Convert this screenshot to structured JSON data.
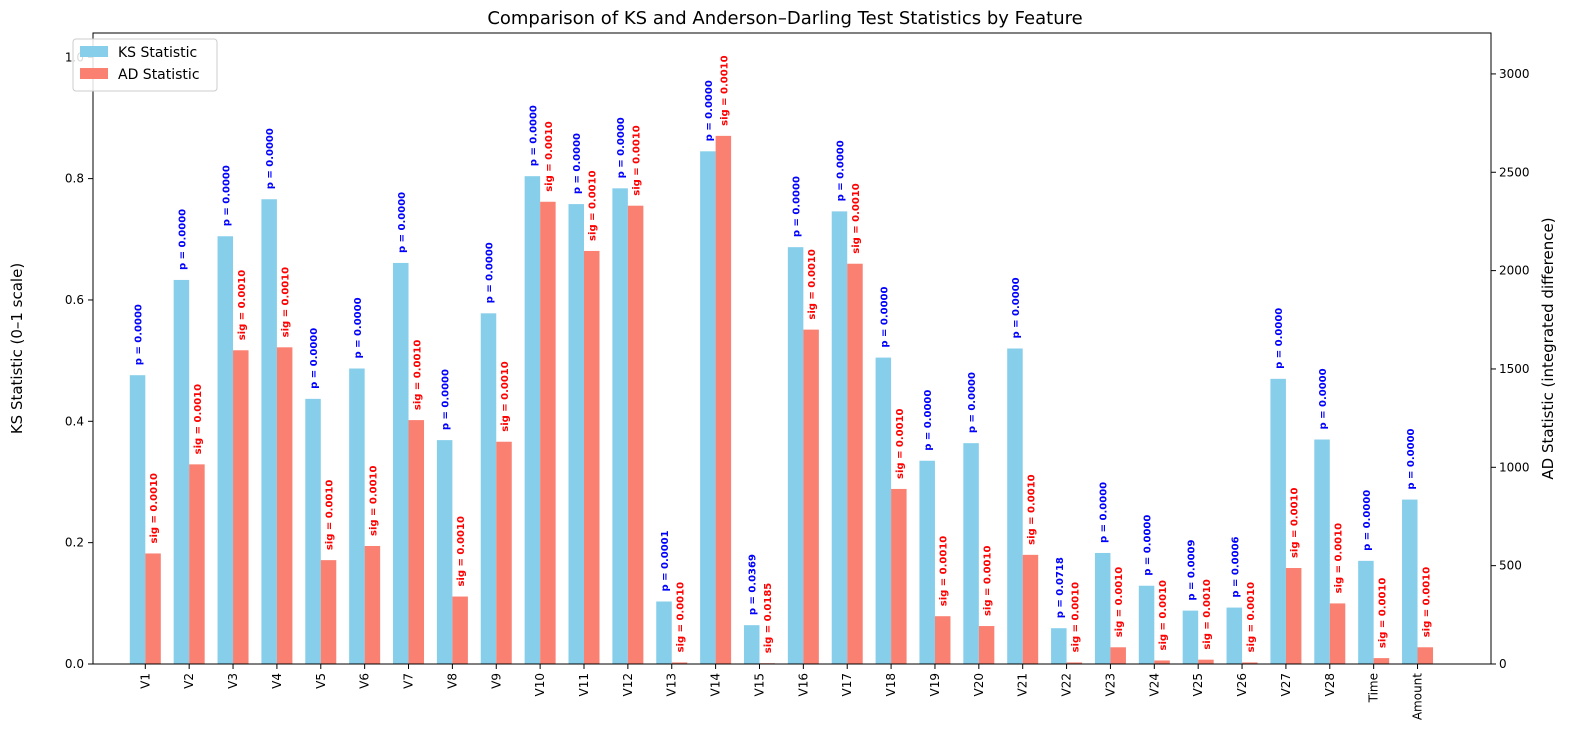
{
  "chart_data": {
    "type": "bar",
    "title": "Comparison of KS and Anderson–Darling Test Statistics by Feature",
    "ylabel_left": "KS Statistic (0–1 scale)",
    "ylabel_right": "AD Statistic (integrated difference)",
    "ylim_left": [
      0,
      1.04
    ],
    "ylim_right": [
      0,
      3208
    ],
    "yticks_left": [
      "0.0",
      "0.2",
      "0.4",
      "0.6",
      "0.8",
      "1.0"
    ],
    "yticks_right": [
      "0",
      "500",
      "1000",
      "1500",
      "2000",
      "2500",
      "3000"
    ],
    "legend_position": "top-left",
    "categories": [
      "V1",
      "V2",
      "V3",
      "V4",
      "V5",
      "V6",
      "V7",
      "V8",
      "V9",
      "V10",
      "V11",
      "V12",
      "V13",
      "V14",
      "V15",
      "V16",
      "V17",
      "V18",
      "V19",
      "V20",
      "V21",
      "V22",
      "V23",
      "V24",
      "V25",
      "V26",
      "V27",
      "V28",
      "Time",
      "Amount"
    ],
    "series": [
      {
        "name": "KS Statistic",
        "axis": "left",
        "color": "#87ceeb",
        "annotation_color": "#0000ff",
        "values": [
          0.476,
          0.633,
          0.705,
          0.766,
          0.437,
          0.487,
          0.661,
          0.369,
          0.578,
          0.804,
          0.758,
          0.784,
          0.103,
          0.845,
          0.064,
          0.687,
          0.746,
          0.505,
          0.335,
          0.364,
          0.52,
          0.059,
          0.183,
          0.129,
          0.088,
          0.093,
          0.47,
          0.37,
          0.17,
          0.271
        ],
        "annotations": [
          "p = 0.0000",
          "p = 0.0000",
          "p = 0.0000",
          "p = 0.0000",
          "p = 0.0000",
          "p = 0.0000",
          "p = 0.0000",
          "p = 0.0000",
          "p = 0.0000",
          "p = 0.0000",
          "p = 0.0000",
          "p = 0.0000",
          "p = 0.0001",
          "p = 0.0000",
          "p = 0.0369",
          "p = 0.0000",
          "p = 0.0000",
          "p = 0.0000",
          "p = 0.0000",
          "p = 0.0000",
          "p = 0.0000",
          "p = 0.0718",
          "p = 0.0000",
          "p = 0.0000",
          "p = 0.0009",
          "p = 0.0006",
          "p = 0.0000",
          "p = 0.0000",
          "p = 0.0000",
          "p = 0.0000"
        ]
      },
      {
        "name": "AD Statistic",
        "axis": "right",
        "color": "#fa8072",
        "annotation_color": "#ff0000",
        "values": [
          562,
          1015,
          1595,
          1610,
          528,
          600,
          1240,
          343,
          1130,
          2350,
          2100,
          2330,
          8,
          2685,
          4,
          1700,
          2035,
          890,
          243,
          193,
          555,
          8,
          85,
          18,
          22,
          8,
          488,
          308,
          30,
          85
        ],
        "annotations": [
          "sig = 0.0010",
          "sig = 0.0010",
          "sig = 0.0010",
          "sig = 0.0010",
          "sig = 0.0010",
          "sig = 0.0010",
          "sig = 0.0010",
          "sig = 0.0010",
          "sig = 0.0010",
          "sig = 0.0010",
          "sig = 0.0010",
          "sig = 0.0010",
          "sig = 0.0010",
          "sig = 0.0010",
          "sig = 0.0185",
          "sig = 0.0010",
          "sig = 0.0010",
          "sig = 0.0010",
          "sig = 0.0010",
          "sig = 0.0010",
          "sig = 0.0010",
          "sig = 0.0010",
          "sig = 0.0010",
          "sig = 0.0010",
          "sig = 0.0010",
          "sig = 0.0010",
          "sig = 0.0010",
          "sig = 0.0010",
          "sig = 0.0010",
          "sig = 0.0010"
        ]
      }
    ]
  }
}
